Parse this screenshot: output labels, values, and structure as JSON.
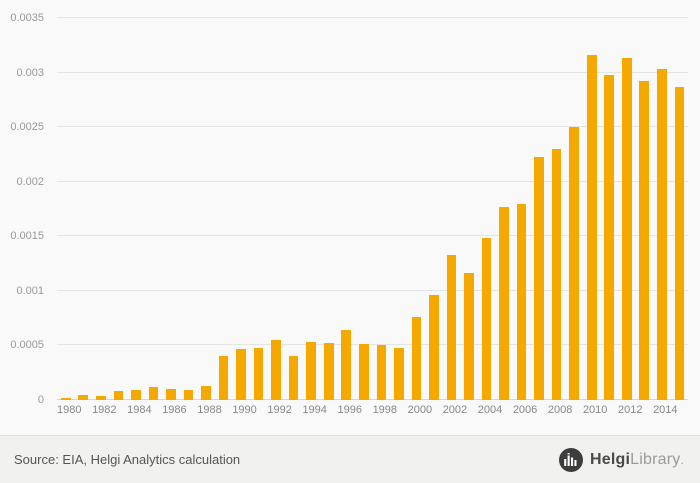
{
  "chart_data": {
    "type": "bar",
    "title": "",
    "xlabel": "",
    "ylabel": "",
    "categories": [
      1980,
      1981,
      1982,
      1983,
      1984,
      1985,
      1986,
      1987,
      1988,
      1989,
      1990,
      1991,
      1992,
      1993,
      1994,
      1995,
      1996,
      1997,
      1998,
      1999,
      2000,
      2001,
      2002,
      2003,
      2004,
      2005,
      2006,
      2007,
      2008,
      2009,
      2010,
      2011,
      2012,
      2013,
      2014,
      2015
    ],
    "values": [
      2e-05,
      5e-05,
      4e-05,
      8e-05,
      9e-05,
      0.00012,
      0.0001,
      9e-05,
      0.00013,
      0.0004,
      0.00047,
      0.00048,
      0.00055,
      0.0004,
      0.00053,
      0.00052,
      0.00064,
      0.00051,
      0.0005,
      0.00048,
      0.00076,
      0.00096,
      0.00133,
      0.00116,
      0.00148,
      0.00177,
      0.0018,
      0.00223,
      0.0023,
      0.0025,
      0.00316,
      0.00298,
      0.00313,
      0.00292,
      0.00303,
      0.00287
    ],
    "ylim": [
      0,
      0.0035
    ],
    "yticks": [
      0,
      0.0005,
      0.001,
      0.0015,
      0.002,
      0.0025,
      0.003,
      0.0035
    ],
    "ytick_labels": [
      "0",
      "0.0005",
      "0.001",
      "0.0015",
      "0.002",
      "0.0025",
      "0.003",
      "0.0035"
    ],
    "xtick_every": 2,
    "grid": "horizontal",
    "legend": "none",
    "bar_color": "#f5a800"
  },
  "footer": {
    "source_text": "Source: EIA, Helgi Analytics calculation",
    "logo": {
      "primary": "Helgi",
      "secondary": "Library",
      "suffix": "."
    }
  },
  "colors": {
    "background": "#f9f9f9",
    "footer_background": "#f1f1f0",
    "gridline": "#e4e4e4",
    "axis_text": "#999999",
    "bar": "#f5a800",
    "logo_circle": "#3d3d3d"
  }
}
